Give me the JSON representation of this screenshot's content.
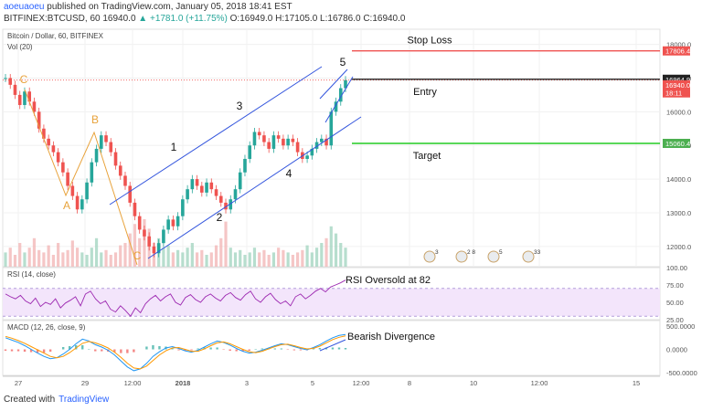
{
  "header": {
    "author": "aoeuaoeu",
    "published": "published on TradingView.com, January 05, 2018 18:41 EST",
    "symbol": "BITFINEX:BTCUSD, 60",
    "price": "16940.0",
    "change": "▲ +1781.0 (+11.75%)",
    "ohlc": "O:16949.0 H:17105.0 L:16786.0 C:16940.0"
  },
  "footer": {
    "created_with": "Created with",
    "brand": "TradingView"
  },
  "chart_data": [
    {
      "type": "candlestick",
      "title": "Bitcoin / Dollar, 60, BITFINEX",
      "volume_label": "Vol (20)",
      "x_ticks": [
        "27",
        "29",
        "12:00",
        "2018",
        "3",
        "5",
        "12:00",
        "8",
        "10",
        "12:00",
        "15"
      ],
      "y_ticks": [
        12000,
        13000,
        14000,
        15000,
        16000,
        17000,
        18000
      ],
      "ylim": [
        11400,
        18450
      ],
      "price_series": [
        17000,
        16800,
        16500,
        16200,
        16600,
        16300,
        16000,
        15500,
        15200,
        15000,
        14800,
        14500,
        14200,
        13800,
        13500,
        13100,
        13400,
        13900,
        14500,
        14900,
        15300,
        15100,
        14800,
        14400,
        14100,
        13800,
        13300,
        12900,
        12500,
        12300,
        12000,
        11800,
        12100,
        12500,
        12800,
        12600,
        12900,
        13400,
        13700,
        14000,
        13800,
        13600,
        13900,
        13700,
        13500,
        13300,
        13100,
        13400,
        13700,
        14200,
        14600,
        15000,
        15400,
        15300,
        15100,
        14900,
        15300,
        15200,
        15000,
        15200,
        15100,
        14800,
        14600,
        14700,
        14900,
        15100,
        15200,
        15000,
        16000,
        16300,
        16700,
        16940
      ],
      "volume_series": [
        0.3,
        0.4,
        0.25,
        0.5,
        0.3,
        0.4,
        0.6,
        0.35,
        0.3,
        0.45,
        0.25,
        0.5,
        0.3,
        0.35,
        0.55,
        0.4,
        0.3,
        0.25,
        0.4,
        0.6,
        0.3,
        0.35,
        0.25,
        0.3,
        0.45,
        0.5,
        0.7,
        0.9,
        0.6,
        1.0,
        0.8,
        0.5,
        0.6,
        0.4,
        0.45,
        0.3,
        0.35,
        0.3,
        0.4,
        0.5,
        0.3,
        0.35,
        0.25,
        0.3,
        0.45,
        0.6,
        0.95,
        0.4,
        0.3,
        0.35,
        0.25,
        0.3,
        0.4,
        0.3,
        0.35,
        0.25,
        0.3,
        0.4,
        0.35,
        0.3,
        0.25,
        0.3,
        0.35,
        0.45,
        0.3,
        0.4,
        0.5,
        0.6,
        0.85,
        0.7,
        0.5,
        0.4
      ],
      "price_tags": [
        {
          "label": "17806.4",
          "value": 17806.4,
          "color": "#ef5350"
        },
        {
          "label": "16964.9",
          "value": 16964.9,
          "color": "#222222"
        },
        {
          "label": "16940.0",
          "value": 16800,
          "color": "#ef5350"
        },
        {
          "label": "18:11",
          "value": 16560,
          "color": "#ef5350"
        },
        {
          "label": "15060.4",
          "value": 15060.4,
          "color": "#4caf50"
        }
      ],
      "levels": [
        {
          "name": "Stop Loss",
          "value": 17806.4,
          "color": "#ef5350"
        },
        {
          "name": "Entry",
          "value": 16964.9,
          "color": "#222222"
        },
        {
          "name": "Target",
          "value": 15060.4,
          "color": "#22cc22"
        }
      ],
      "wave_labels": [
        {
          "text": "C",
          "color": "#e8a33c"
        },
        {
          "text": "B",
          "color": "#e8a33c"
        },
        {
          "text": "A",
          "color": "#e8a33c"
        },
        {
          "text": "C",
          "color": "#e8a33c"
        },
        {
          "text": "1",
          "color": "#111111"
        },
        {
          "text": "2",
          "color": "#111111"
        },
        {
          "text": "3",
          "color": "#111111"
        },
        {
          "text": "4",
          "color": "#111111"
        },
        {
          "text": "5",
          "color": "#111111"
        }
      ],
      "events": [
        "3",
        "2",
        "8",
        "5",
        "3",
        "33"
      ]
    },
    {
      "type": "line",
      "title": "RSI (14, close)",
      "annotation": "RSI Oversold at 82",
      "y_ticks": [
        25,
        50,
        75,
        100
      ],
      "ylim": [
        25,
        100
      ],
      "bands": [
        30,
        70
      ],
      "values": [
        62,
        58,
        55,
        60,
        52,
        48,
        56,
        44,
        50,
        47,
        55,
        42,
        49,
        53,
        58,
        45,
        62,
        66,
        55,
        48,
        52,
        40,
        36,
        45,
        38,
        30,
        42,
        35,
        48,
        55,
        60,
        52,
        58,
        62,
        50,
        46,
        57,
        61,
        54,
        50,
        58,
        62,
        56,
        52,
        60,
        64,
        57,
        53,
        61,
        66,
        55,
        50,
        58,
        63,
        54,
        48,
        52,
        45,
        58,
        62,
        55,
        60,
        66,
        70,
        65,
        72,
        75,
        78,
        82
      ]
    },
    {
      "type": "line",
      "title": "MACD (12, 26, close, 9)",
      "annotation": "Bearish Divergence",
      "y_ticks": [
        500,
        0,
        -500
      ],
      "ylim": [
        -560,
        620
      ],
      "macd": [
        250,
        200,
        150,
        80,
        0,
        -80,
        -150,
        -200,
        -180,
        -100,
        0,
        120,
        220,
        180,
        100,
        50,
        -20,
        -120,
        -250,
        -380,
        -460,
        -420,
        -300,
        -150,
        -50,
        30,
        60,
        20,
        -30,
        -60,
        -20,
        50,
        120,
        180,
        150,
        90,
        20,
        -40,
        -80,
        -60,
        -20,
        30,
        80,
        120,
        100,
        60,
        20,
        -10,
        40,
        100,
        180,
        250,
        300,
        320
      ],
      "signal": [
        280,
        240,
        190,
        130,
        60,
        -10,
        -80,
        -150,
        -180,
        -150,
        -70,
        30,
        130,
        170,
        140,
        90,
        30,
        -60,
        -170,
        -300,
        -400,
        -420,
        -360,
        -240,
        -120,
        -30,
        30,
        40,
        0,
        -40,
        -40,
        10,
        80,
        140,
        160,
        120,
        60,
        0,
        -50,
        -70,
        -40,
        10,
        60,
        100,
        110,
        80,
        40,
        10,
        20,
        70,
        140,
        210,
        260,
        290
      ],
      "histogram": [
        -30,
        -40,
        -40,
        -50,
        -60,
        -70,
        -70,
        -50,
        0,
        50,
        70,
        90,
        90,
        10,
        -40,
        -40,
        -50,
        -60,
        -80,
        -80,
        -60,
        0,
        60,
        90,
        70,
        60,
        30,
        -20,
        -30,
        -20,
        20,
        40,
        40,
        40,
        -10,
        -30,
        -40,
        -40,
        -30,
        10,
        20,
        20,
        20,
        20,
        -10,
        -20,
        -20,
        -20,
        20,
        30,
        40,
        40,
        40,
        30
      ]
    }
  ]
}
